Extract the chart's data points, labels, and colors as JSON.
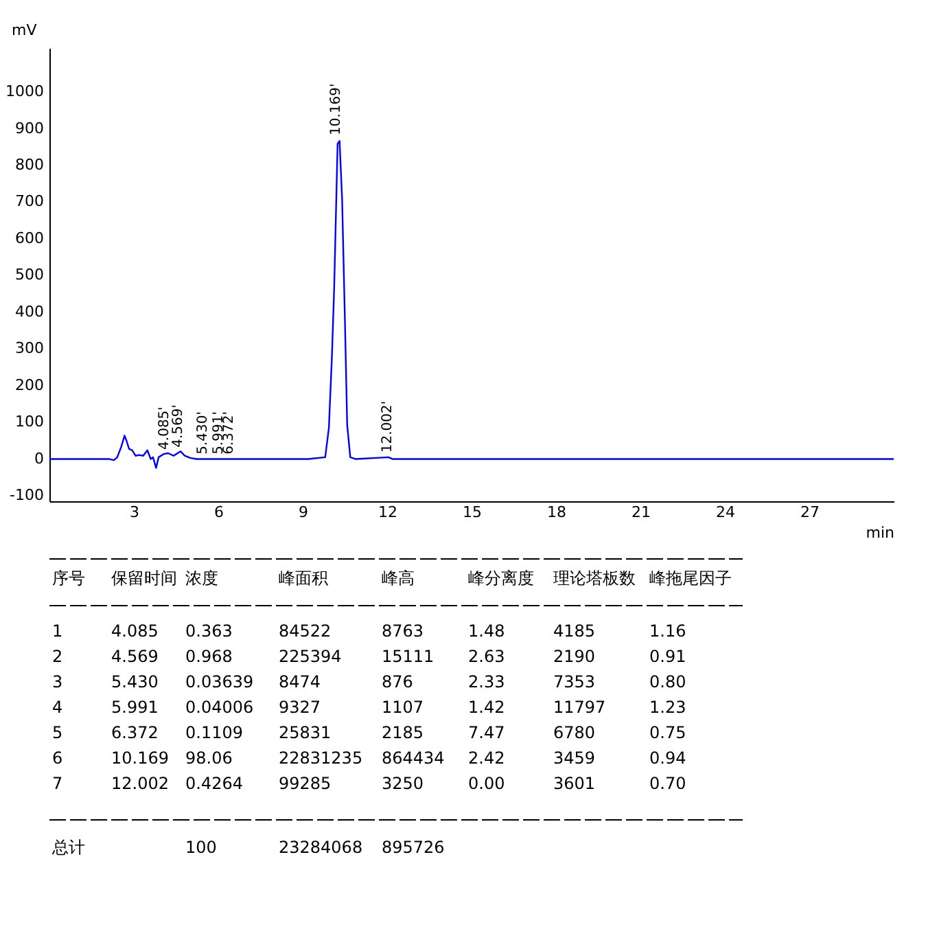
{
  "chart_data": {
    "type": "line",
    "xlabel": "min",
    "ylabel": "mV",
    "x": [
      0,
      2.13,
      2.29,
      2.41,
      2.55,
      2.67,
      2.73,
      2.83,
      2.94,
      3.06,
      3.19,
      3.33,
      3.48,
      3.6,
      3.68,
      3.79,
      3.88,
      4.07,
      4.22,
      4.41,
      4.66,
      4.81,
      5.0,
      5.23,
      9.19,
      9.8,
      9.93,
      10.04,
      10.12,
      10.24,
      10.31,
      10.4,
      10.5,
      10.58,
      10.69,
      10.89,
      12.05,
      12.2,
      30
    ],
    "series": [
      {
        "color": "#0000ff",
        "values": [
          0,
          0,
          -3,
          5,
          33,
          64,
          52,
          28,
          24,
          9,
          11,
          9,
          24,
          0,
          5,
          -24,
          5,
          14,
          16,
          9,
          21,
          9,
          3,
          0,
          0,
          5,
          85,
          283,
          472,
          859,
          867,
          708,
          378,
          94,
          5,
          0,
          5,
          0,
          0
        ]
      }
    ],
    "xlim": [
      0,
      30
    ],
    "xticks": [
      3,
      6,
      9,
      12,
      15,
      18,
      21,
      24,
      27
    ],
    "ylim": [
      -115,
      1120
    ],
    "yticks": [
      -100,
      0,
      100,
      200,
      300,
      400,
      500,
      600,
      700,
      800,
      900,
      1000
    ],
    "grid": false,
    "line_style": "solid",
    "marker": "none",
    "annotations": [
      {
        "text": "4.085'",
        "x": 4.085,
        "y": 18
      },
      {
        "text": "4.569'",
        "x": 4.569,
        "y": 24
      },
      {
        "text": "5.430'",
        "x": 5.43,
        "y": 5
      },
      {
        "text": "5.991'",
        "x": 5.991,
        "y": 5
      },
      {
        "text": "6.372'",
        "x": 6.372,
        "y": 5
      },
      {
        "text": "10.169'",
        "x": 10.169,
        "y": 875
      },
      {
        "text": "12.002'",
        "x": 12.002,
        "y": 10
      },
      "序号",
      "保留时间",
      "浓度",
      "峰面积",
      "峰高",
      "峰分离度",
      "理论塔板数",
      "峰拖尾因子",
      "1",
      "4.085",
      "0.363",
      "84522",
      "8763",
      "1.48",
      "4185",
      "1.16",
      "2",
      "4.569",
      "0.968",
      "225394",
      "15111",
      "2.63",
      "2190",
      "0.91",
      "3",
      "5.430",
      "0.03639",
      "8474",
      "876",
      "2.33",
      "7353",
      "0.80",
      "4",
      "5.991",
      "0.04006",
      "9327",
      "1107",
      "1.42",
      "11797",
      "1.23",
      "5",
      "6.372",
      "0.1109",
      "25831",
      "2185",
      "7.47",
      "6780",
      "0.75",
      "6",
      "10.169",
      "98.06",
      "22831235",
      "864434",
      "2.42",
      "3459",
      "0.94",
      "7",
      "12.002",
      "0.4264",
      "99285",
      "3250",
      "0.00",
      "3601",
      "0.70",
      "总计",
      "100",
      "23284068",
      "895726"
    ]
  }
}
